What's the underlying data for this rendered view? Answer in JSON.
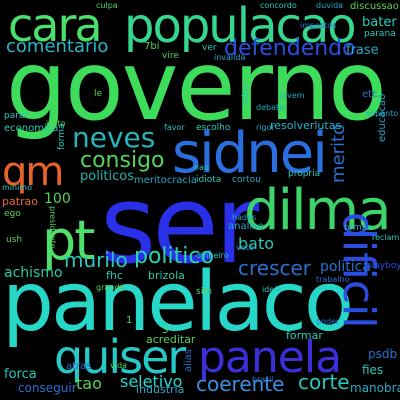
{
  "colors": {
    "background": "#000000",
    "green": "#3ddc5a",
    "teal": "#27c9a8",
    "blue": "#2a4fe0",
    "cyan": "#27d7d0",
    "indigo": "#3b2fd9",
    "orange": "#e8622a"
  },
  "words": [
    {
      "text": "governo",
      "color": "#3ddc5a"
    },
    {
      "text": "ser",
      "color": "#2a2fe8"
    },
    {
      "text": "panelaco",
      "color": "#27d7c8"
    },
    {
      "text": "sidnei",
      "color": "#2a6fe0"
    },
    {
      "text": "populacao",
      "color": "#35d690"
    },
    {
      "text": "cara",
      "color": "#4ce06a"
    },
    {
      "text": "dilma",
      "color": "#3cd36b"
    },
    {
      "text": "quiser",
      "color": "#27c9c8"
    },
    {
      "text": "panela",
      "color": "#3b2fd9"
    },
    {
      "text": "pt",
      "color": "#4ee06a"
    },
    {
      "text": "qm",
      "color": "#e8622a"
    },
    {
      "text": "dificil",
      "color": "#2a4fe0"
    },
    {
      "text": "neves",
      "color": "#27b3b8"
    },
    {
      "text": "consigo",
      "color": "#57d35a"
    },
    {
      "text": "defendendo",
      "color": "#2a4fe0"
    },
    {
      "text": "comentario",
      "color": "#27b8c8"
    },
    {
      "text": "merito",
      "color": "#2a6fd0"
    },
    {
      "text": "politico",
      "color": "#27d7b0"
    },
    {
      "text": "murilo",
      "color": "#27c9b8"
    },
    {
      "text": "crescer",
      "color": "#2a6fd0"
    },
    {
      "text": "coerente",
      "color": "#3a8fe0"
    },
    {
      "text": "corte",
      "color": "#27c9b8"
    },
    {
      "text": "seletivo",
      "color": "#27d7d0"
    },
    {
      "text": "tao",
      "color": "#57d35a"
    },
    {
      "text": "bato",
      "color": "#27c9b8"
    },
    {
      "text": "politica",
      "color": "#2a6fd0"
    },
    {
      "text": "achismo",
      "color": "#27c9a8"
    },
    {
      "text": "politicos",
      "color": "#27b3a8"
    },
    {
      "text": "100",
      "color": "#57d35a"
    },
    {
      "text": "resolverlutas",
      "color": "#27b3c8"
    },
    {
      "text": "bater",
      "color": "#27c9b8"
    },
    {
      "text": "frase",
      "color": "#27a8c8"
    },
    {
      "text": "psdb",
      "color": "#2a6fd0"
    },
    {
      "text": "fies",
      "color": "#27c9b8"
    },
    {
      "text": "manobra",
      "color": "#27a8c8"
    },
    {
      "text": "forca",
      "color": "#27c9b8"
    },
    {
      "text": "conseguir",
      "color": "#2a6fd0"
    },
    {
      "text": "industria",
      "color": "#27a8c8"
    },
    {
      "text": "acreditar",
      "color": "#57d35a"
    },
    {
      "text": "formar",
      "color": "#27c9b8"
    },
    {
      "text": "economica",
      "color": "#27c9b8"
    },
    {
      "text": "meritocracia",
      "color": "#27a8c8"
    },
    {
      "text": "patrao",
      "color": "#e86a2a"
    },
    {
      "text": "brizola",
      "color": "#27c9a8"
    },
    {
      "text": "fhc",
      "color": "#27c9b8"
    },
    {
      "text": "analise",
      "color": "#27a8c8"
    },
    {
      "text": "discussao",
      "color": "#57d35a"
    },
    {
      "text": "etc",
      "color": "#2a6fd0"
    },
    {
      "text": "educacao",
      "color": "#27a8c8"
    },
    {
      "text": "parar",
      "color": "#27c9b8"
    },
    {
      "text": "ego",
      "color": "#57d35a"
    },
    {
      "text": "atras",
      "color": "#2a6fd0"
    },
    {
      "text": "escolho",
      "color": "#27c9b8"
    },
    {
      "text": "ver",
      "color": "#27c9b8"
    },
    {
      "text": "vire",
      "color": "#57d35a"
    },
    {
      "text": "le",
      "color": "#57d35a"
    },
    {
      "text": "7bi",
      "color": "#57d35a"
    },
    {
      "text": "ush",
      "color": "#57d35a"
    },
    {
      "text": "cortou",
      "color": "#27a8c8"
    },
    {
      "text": "idiota",
      "color": "#27c9b8"
    },
    {
      "text": "propria",
      "color": "#27c9b8"
    },
    {
      "text": "tomar",
      "color": "#27a8c8"
    },
    {
      "text": "playboy",
      "color": "#2a4fe0"
    },
    {
      "text": "forma",
      "color": "#27c9b8"
    },
    {
      "text": "rolou",
      "color": "#27c9b8"
    },
    {
      "text": "sim",
      "color": "#57d35a"
    },
    {
      "text": "alias",
      "color": "#2a6fd0"
    },
    {
      "text": "invalida",
      "color": "#27a8c8"
    },
    {
      "text": "parana",
      "color": "#27c9b8"
    },
    {
      "text": "brasil",
      "color": "#2a6fd0"
    },
    {
      "text": "hades",
      "color": "#27a8c8"
    },
    {
      "text": "dinheiro",
      "color": "#27c9b8"
    },
    {
      "text": "1",
      "color": "#57d35a"
    },
    {
      "text": "3",
      "color": "#57d35a"
    },
    {
      "text": "espanto",
      "color": "#27a8c8"
    },
    {
      "text": "debate",
      "color": "#27a8c8"
    },
    {
      "text": "impostos",
      "color": "#2a6fd0"
    },
    {
      "text": "presidente",
      "color": "#57d35a"
    },
    {
      "text": "voto",
      "color": "#27a8c8"
    },
    {
      "text": "reclamar",
      "color": "#27c9b8"
    },
    {
      "text": "trabalho",
      "color": "#2a6fd0"
    },
    {
      "text": "ideia",
      "color": "#27c9b8"
    },
    {
      "text": "justo",
      "color": "#57d35a"
    },
    {
      "text": "duvida",
      "color": "#27a8c8"
    },
    {
      "text": "concordo",
      "color": "#27c9b8"
    },
    {
      "text": "culpa",
      "color": "#57d35a"
    },
    {
      "text": "favor",
      "color": "#27c9b8"
    },
    {
      "text": "rigor",
      "color": "#27a8c8"
    },
    {
      "text": "poder",
      "color": "#2a6fd0"
    },
    {
      "text": "minimo",
      "color": "#27c9b8"
    },
    {
      "text": "grande",
      "color": "#57d35a"
    },
    {
      "text": "jovem",
      "color": "#27a8c8"
    },
    {
      "text": "nao",
      "color": "#27c9b8"
    },
    {
      "text": "vida",
      "color": "#57d35a"
    }
  ]
}
